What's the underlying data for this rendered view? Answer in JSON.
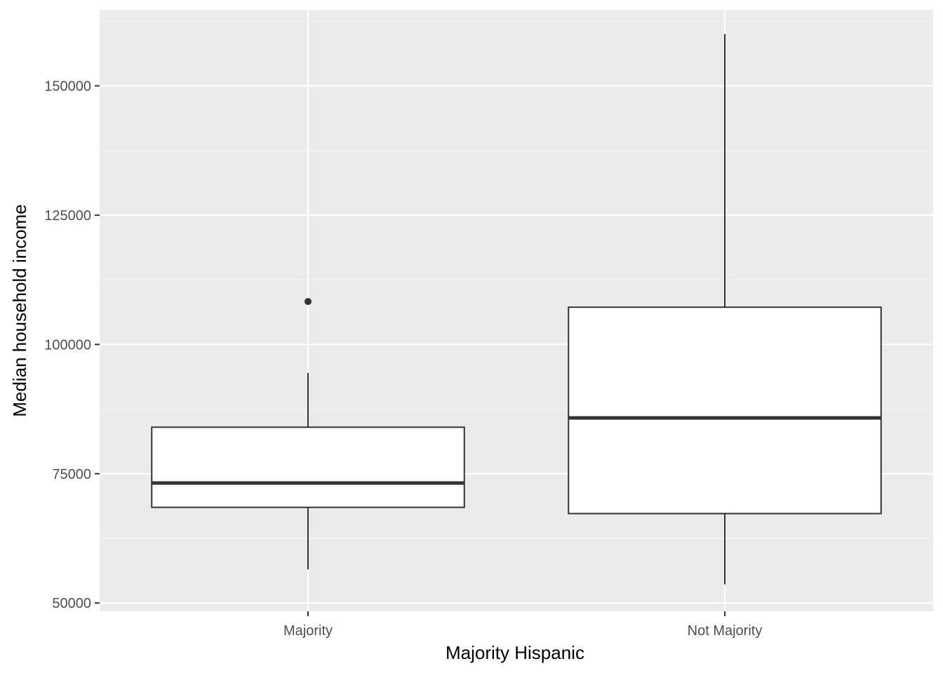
{
  "chart_data": {
    "type": "boxplot",
    "title": "",
    "xlabel": "Majority Hispanic",
    "ylabel": "Median household income",
    "categories": [
      "Majority",
      "Not Majority"
    ],
    "boxes": [
      {
        "category": "Majority",
        "whisker_low": 56500,
        "q1": 68500,
        "median": 73200,
        "q3": 84000,
        "whisker_high": 94500,
        "outliers": [
          108300
        ]
      },
      {
        "category": "Not Majority",
        "whisker_low": 53600,
        "q1": 67300,
        "median": 85800,
        "q3": 107200,
        "whisker_high": 160000,
        "outliers": []
      }
    ],
    "y_ticks": [
      50000,
      75000,
      100000,
      125000,
      150000
    ],
    "y_tick_labels": [
      "50000",
      "75000",
      "100000",
      "125000",
      "150000"
    ],
    "ylim": [
      48400,
      164700
    ],
    "grid": true,
    "legend": "none",
    "colors": {
      "panel_background": "#ebebeb",
      "grid_major": "#ffffff",
      "grid_minor": "#f5f5f5",
      "box_fill": "#ffffff",
      "box_stroke": "#333333",
      "tick_text": "#4d4d4d",
      "title_text": "#000000"
    }
  }
}
